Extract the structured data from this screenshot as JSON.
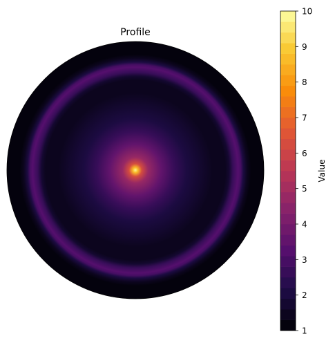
{
  "chart_data": {
    "type": "heatmap",
    "subtype": "polar-contourf",
    "title": "Profile",
    "colormap": "inferno",
    "levels": 30,
    "grid": false,
    "colorbar": {
      "label": "Value",
      "placement": "right",
      "range": [
        1,
        10
      ],
      "ticks": [
        1,
        2,
        3,
        4,
        5,
        6,
        7,
        8,
        9,
        10
      ],
      "tick_labels": [
        "1",
        "2",
        "3",
        "4",
        "5",
        "6",
        "7",
        "8",
        "9",
        "10"
      ]
    },
    "radial_profile": {
      "r": [
        0.0,
        0.02,
        0.05,
        0.1,
        0.2,
        0.3,
        0.4,
        0.5,
        0.6,
        0.7,
        0.73,
        0.76,
        0.78,
        0.8,
        0.82,
        0.84,
        0.87,
        0.9,
        1.0
      ],
      "value": [
        10.0,
        8.5,
        6.3,
        4.6,
        3.4,
        2.6,
        2.1,
        1.7,
        1.45,
        1.35,
        1.6,
        2.5,
        3.0,
        3.15,
        2.9,
        2.1,
        1.35,
        1.1,
        1.0
      ]
    }
  }
}
